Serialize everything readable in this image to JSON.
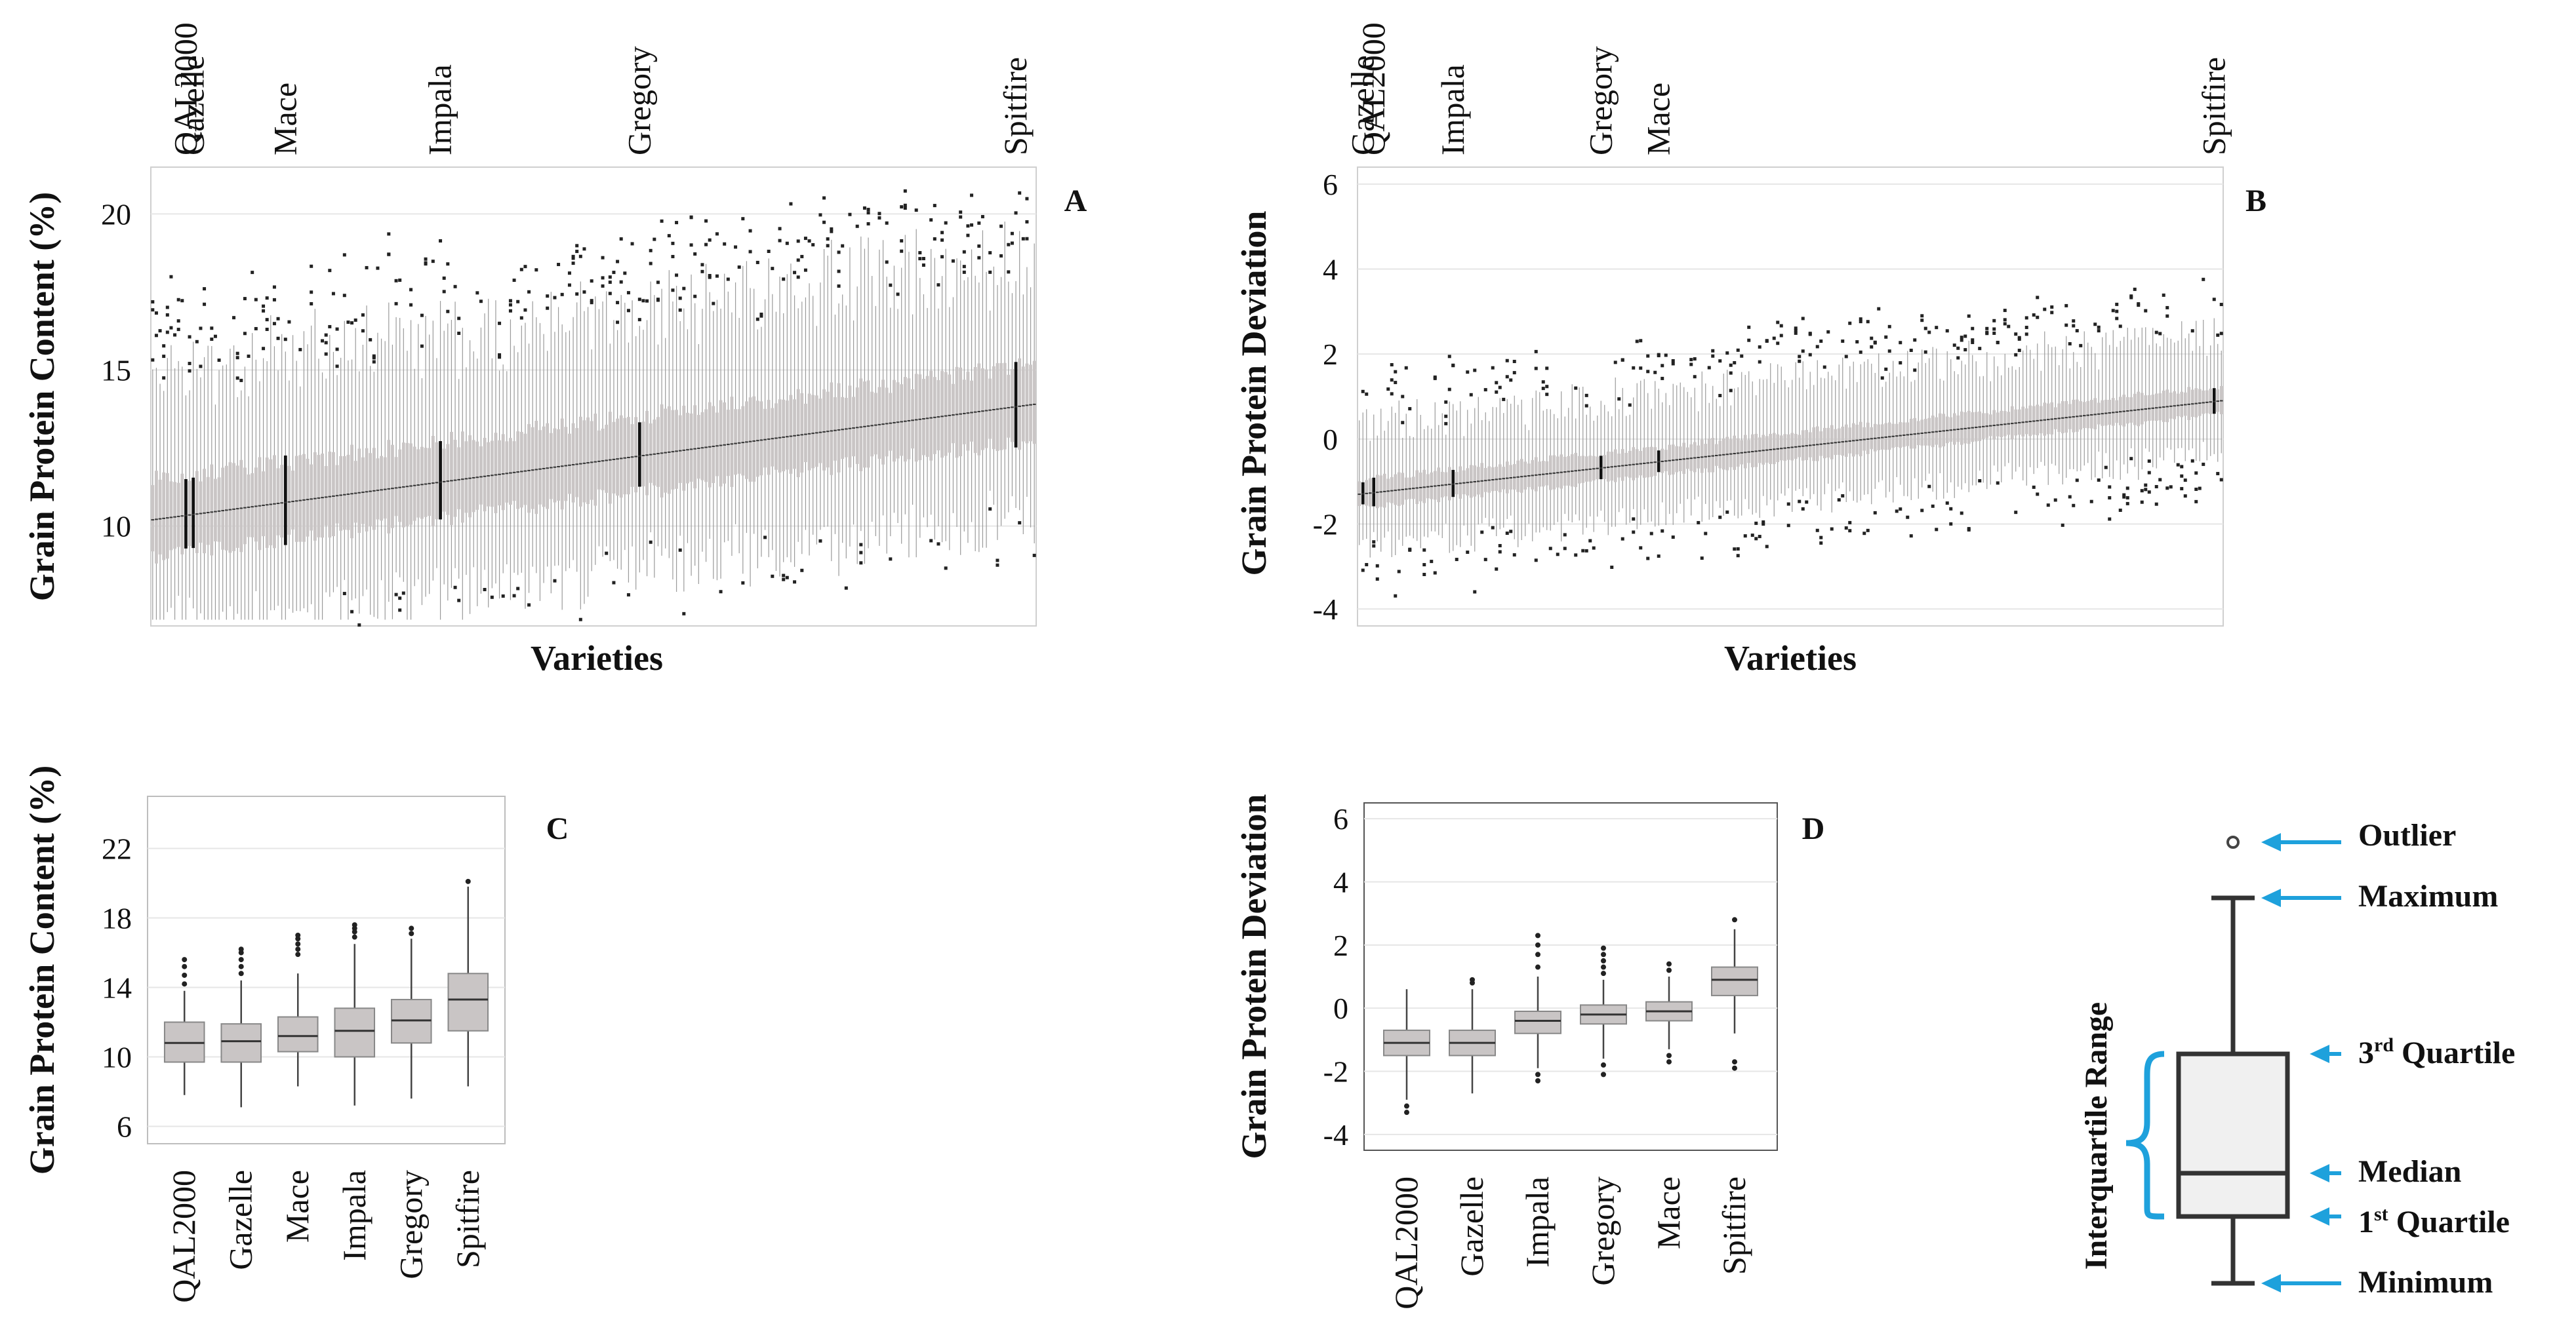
{
  "figure": {
    "background": "#ffffff",
    "box_fill": "#c9c5c5",
    "box_stroke": "#333333",
    "grid": "#e6e6e6",
    "accent": "#1ea1dc"
  },
  "chart_data": [
    {
      "panel": "A",
      "type": "boxplot",
      "title": "",
      "xlabel": "Varieties",
      "ylabel": "Grain Protein Content (%)",
      "ylim": [
        6.8,
        21.5
      ],
      "yticks": [
        10,
        15,
        20
      ],
      "n_varieties": 240,
      "median_range": [
        10.2,
        13.9
      ],
      "highlighted_varieties": [
        {
          "name": "QAL2000",
          "rank": 10
        },
        {
          "name": "Gazelle",
          "rank": 12
        },
        {
          "name": "Mace",
          "rank": 37
        },
        {
          "name": "Impala",
          "rank": 79
        },
        {
          "name": "Gregory",
          "rank": 133
        },
        {
          "name": "Spitfire",
          "rank": 235
        }
      ]
    },
    {
      "panel": "B",
      "type": "boxplot",
      "title": "",
      "xlabel": "Varieties",
      "ylabel": "Grain Protein Deviation",
      "ylim": [
        -4.4,
        6.4
      ],
      "yticks": [
        -4,
        -2,
        0,
        2,
        4,
        6
      ],
      "n_varieties": 240,
      "median_range": [
        -1.3,
        0.9
      ],
      "highlighted_varieties": [
        {
          "name": "Gazelle",
          "rank": 2
        },
        {
          "name": "QAL2000",
          "rank": 5
        },
        {
          "name": "Impala",
          "rank": 27
        },
        {
          "name": "Gregory",
          "rank": 68
        },
        {
          "name": "Mace",
          "rank": 84
        },
        {
          "name": "Spitfire",
          "rank": 238
        }
      ]
    },
    {
      "panel": "C",
      "type": "boxplot",
      "title": "",
      "xlabel": "",
      "ylabel": "Grain Protein Content  (%)",
      "ylim": [
        5,
        25
      ],
      "yticks": [
        6,
        10,
        14,
        18,
        22
      ],
      "categories": [
        "QAL2000",
        "Gazelle",
        "Mace",
        "Impala",
        "Gregory",
        "Spitfire"
      ],
      "boxes": [
        {
          "min": 7.8,
          "q1": 9.7,
          "median": 10.8,
          "q3": 12.0,
          "max": 13.8,
          "outliers": [
            14.2,
            14.7,
            15.2,
            15.6
          ]
        },
        {
          "min": 7.1,
          "q1": 9.7,
          "median": 10.9,
          "q3": 11.9,
          "max": 14.4,
          "outliers": [
            14.8,
            15.2,
            15.6,
            16.0,
            16.2
          ]
        },
        {
          "min": 8.3,
          "q1": 10.3,
          "median": 11.2,
          "q3": 12.3,
          "max": 14.8,
          "outliers": [
            15.9,
            16.2,
            16.5,
            16.8,
            17.0
          ]
        },
        {
          "min": 7.2,
          "q1": 10.0,
          "median": 11.5,
          "q3": 12.8,
          "max": 16.5,
          "outliers": [
            16.9,
            17.2,
            17.4,
            17.6
          ]
        },
        {
          "min": 7.6,
          "q1": 10.8,
          "median": 12.1,
          "q3": 13.3,
          "max": 16.8,
          "outliers": [
            17.1,
            17.4
          ]
        },
        {
          "min": 8.3,
          "q1": 11.5,
          "median": 13.3,
          "q3": 14.8,
          "max": 19.8,
          "outliers": [
            20.1
          ]
        }
      ]
    },
    {
      "panel": "D",
      "type": "boxplot",
      "title": "",
      "xlabel": "",
      "ylabel": "Grain Protein Deviation",
      "ylim": [
        -4.5,
        6.5
      ],
      "yticks": [
        -4,
        -2,
        0,
        2,
        4,
        6
      ],
      "categories": [
        "QAL2000",
        "Gazelle",
        "Impala",
        "Gregory",
        "Mace",
        "Spitfire"
      ],
      "boxes": [
        {
          "min": -2.9,
          "q1": -1.5,
          "median": -1.1,
          "q3": -0.7,
          "max": 0.6,
          "outliers": [
            -3.1,
            -3.3
          ]
        },
        {
          "min": -2.7,
          "q1": -1.5,
          "median": -1.1,
          "q3": -0.7,
          "max": 0.6,
          "outliers": [
            0.8,
            0.9
          ]
        },
        {
          "min": -1.9,
          "q1": -0.8,
          "median": -0.4,
          "q3": -0.1,
          "max": 1.0,
          "outliers": [
            1.3,
            1.7,
            2.0,
            2.3,
            -2.1,
            -2.3
          ]
        },
        {
          "min": -1.6,
          "q1": -0.5,
          "median": -0.2,
          "q3": 0.1,
          "max": 0.9,
          "outliers": [
            1.1,
            1.3,
            1.5,
            1.7,
            1.9,
            -1.8,
            -2.1
          ]
        },
        {
          "min": -1.3,
          "q1": -0.4,
          "median": -0.1,
          "q3": 0.2,
          "max": 1.0,
          "outliers": [
            1.2,
            1.4,
            -1.5,
            -1.7
          ]
        },
        {
          "min": -0.8,
          "q1": 0.4,
          "median": 0.9,
          "q3": 1.3,
          "max": 2.5,
          "outliers": [
            2.8,
            -1.7,
            -1.9
          ]
        }
      ]
    }
  ],
  "panel_labels": {
    "a": "A",
    "b": "B",
    "c": "C",
    "d": "D"
  },
  "legend": {
    "range_label": "Interquartile Range",
    "outlier": "Outlier",
    "maximum": "Maximum",
    "q3_num": "3",
    "q3_sup": "rd",
    "q3_word": " Quartile",
    "median": "Median",
    "q1_num": "1",
    "q1_sup": "st",
    "q1_word": " Quartile",
    "minimum": "Minimum"
  }
}
